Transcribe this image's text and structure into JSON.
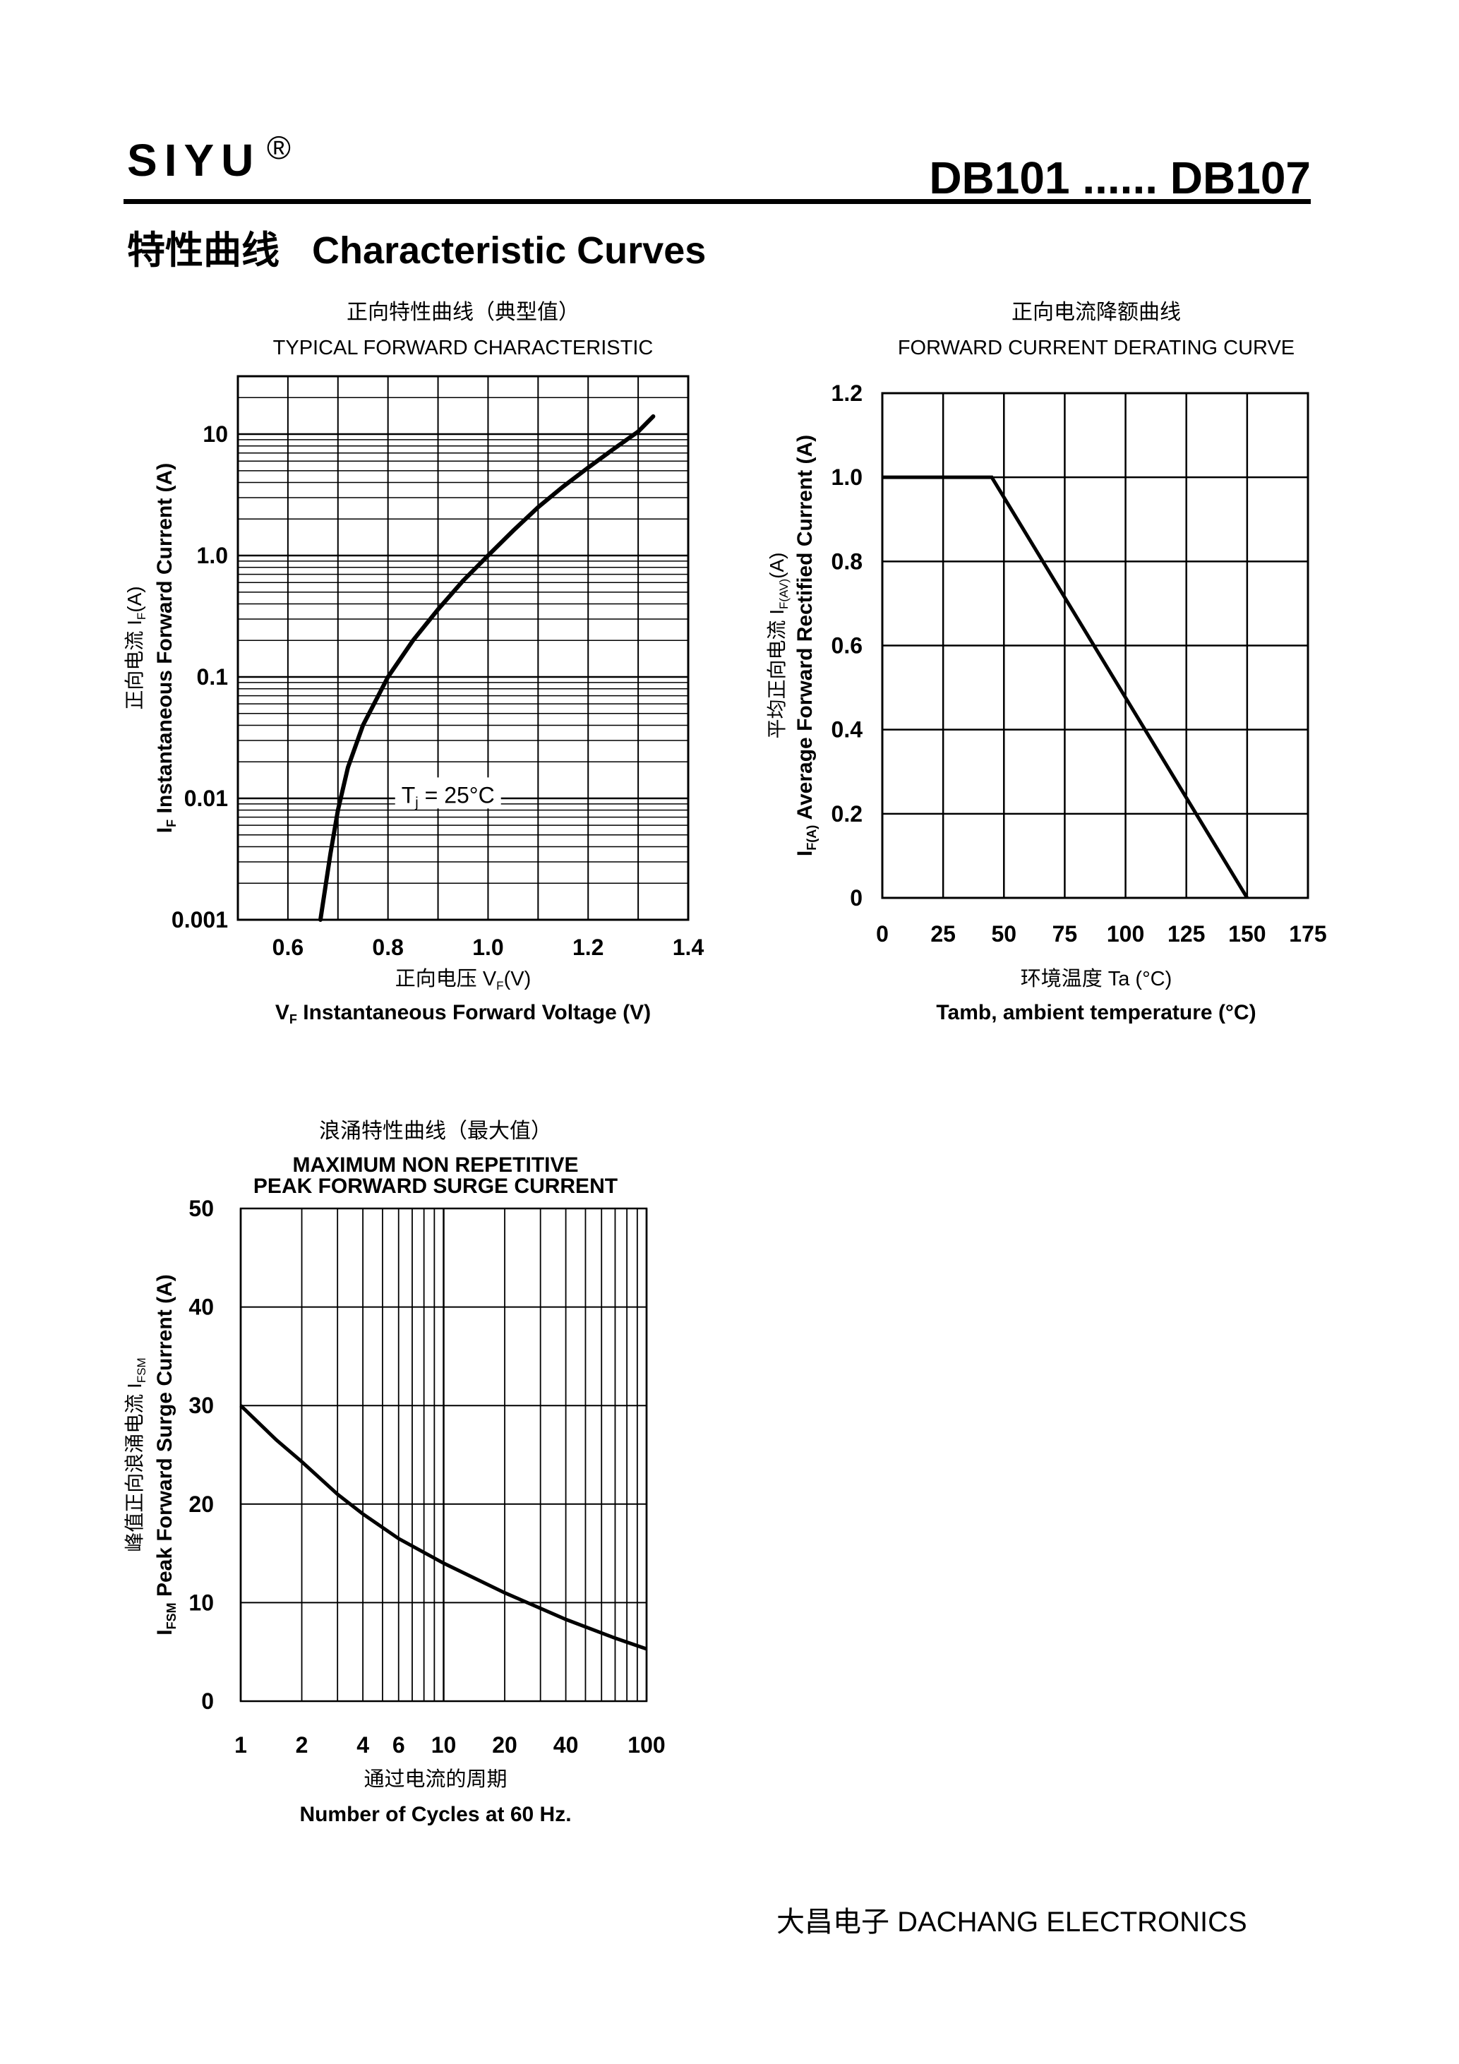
{
  "header": {
    "brand": "SIYU",
    "registered_mark": "®",
    "part_range": "DB101 ...... DB107",
    "section_title_cn": "特性曲线",
    "section_title_en": "Characteristic Curves"
  },
  "footer": {
    "company": "大昌电子   DACHANG ELECTRONICS"
  },
  "chart_data": [
    {
      "type": "line",
      "title_cn": "正向特性曲线（典型值）",
      "title": "TYPICAL FORWARD CHARACTERISTIC",
      "xlabel_cn": "正向电压    V",
      "xlabel_cn_sub": "F",
      "xlabel_cn_unit": "(V)",
      "xlabel_sym": "V",
      "xlabel_sub": "F",
      "xlabel": "Instantaneous Forward Voltage (V)",
      "ylabel_cn": "正向电流    I",
      "ylabel_cn_sub": "F",
      "ylabel_cn_unit": "(A)",
      "ylabel_sym": "I",
      "ylabel_sub": "F",
      "ylabel": "Instantaneous Forward Current (A)",
      "xlim": [
        0.5,
        1.4
      ],
      "ylim": [
        0.001,
        30
      ],
      "yscale": "log",
      "xticks": [
        0.6,
        0.8,
        1.0,
        1.2,
        1.4
      ],
      "xtick_labels": [
        "0.6",
        "0.8",
        "1.0",
        "1.2",
        "1.4"
      ],
      "yticks": [
        0.001,
        0.01,
        0.1,
        1.0,
        10
      ],
      "ytick_labels": [
        "0.001",
        "0.01",
        "0.1",
        "1.0",
        "10"
      ],
      "annotation": {
        "text": "T",
        "sub": "j",
        "rest": " = 25°C",
        "x": 0.92,
        "y": 0.0105
      },
      "grid": true,
      "series": [
        {
          "x": [
            0.665,
            0.685,
            0.7,
            0.72,
            0.75,
            0.8,
            0.85,
            0.9,
            0.95,
            1.0,
            1.05,
            1.1,
            1.15,
            1.2,
            1.25,
            1.3,
            1.33
          ],
          "y": [
            0.001,
            0.0035,
            0.008,
            0.018,
            0.04,
            0.1,
            0.2,
            0.36,
            0.62,
            1.0,
            1.6,
            2.5,
            3.7,
            5.3,
            7.5,
            10.5,
            14
          ]
        }
      ]
    },
    {
      "type": "line",
      "title_cn": "正向电流降额曲线",
      "title": "FORWARD CURRENT DERATING CURVE",
      "xlabel_cn": "环境温度    Ta (°C)",
      "xlabel": "Tamb, ambient temperature (°C)",
      "ylabel_cn": "平均正向电流    I",
      "ylabel_cn_sub": "F(AV)",
      "ylabel_cn_unit": "(A)",
      "ylabel_sym": "I",
      "ylabel_sub": "F(A)",
      "ylabel": "Average Forward Rectified Current (A)",
      "xlim": [
        0,
        175
      ],
      "ylim": [
        0,
        1.2
      ],
      "xticks": [
        0,
        25,
        50,
        75,
        100,
        125,
        150,
        175
      ],
      "xtick_labels": [
        "0",
        "25",
        "50",
        "75",
        "100",
        "125",
        "150",
        "175"
      ],
      "yticks": [
        0,
        0.2,
        0.4,
        0.6,
        0.8,
        1.0,
        1.2
      ],
      "ytick_labels": [
        "0",
        "0.2",
        "0.4",
        "0.6",
        "0.8",
        "1.0",
        "1.2"
      ],
      "grid": true,
      "series": [
        {
          "x": [
            0,
            45,
            150
          ],
          "y": [
            1.0,
            1.0,
            0
          ]
        }
      ]
    },
    {
      "type": "line",
      "title_cn": "浪涌特性曲线（最大值）",
      "title": "MAXIMUM NON REPETITIVE",
      "subtitle": "PEAK FORWARD SURGE CURRENT",
      "xlabel_cn": "通过电流的周期",
      "xlabel": "Number  of  Cycles at 60 Hz.",
      "ylabel_cn": "峰值正向浪涌电流    I",
      "ylabel_cn_sub": "FSM",
      "ylabel_sym": "I",
      "ylabel_sub": "FSM",
      "ylabel": "Peak Forward Surge Current (A)",
      "xlim": [
        1,
        100
      ],
      "xscale": "log",
      "ylim": [
        0,
        50
      ],
      "xticks": [
        1,
        2,
        4,
        6,
        10,
        20,
        40,
        100
      ],
      "xtick_labels": [
        "1",
        "2",
        "4",
        "6",
        "10",
        "20",
        "40",
        "100"
      ],
      "yticks": [
        0,
        10,
        20,
        30,
        40,
        50
      ],
      "ytick_labels": [
        "0",
        "10",
        "20",
        "30",
        "40",
        "50"
      ],
      "grid": true,
      "series": [
        {
          "x": [
            1,
            1.5,
            2,
            3,
            4,
            6,
            10,
            20,
            40,
            70,
            100
          ],
          "y": [
            30,
            26.5,
            24.3,
            21.0,
            19.0,
            16.5,
            14.0,
            11.0,
            8.3,
            6.4,
            5.3
          ]
        }
      ]
    }
  ]
}
